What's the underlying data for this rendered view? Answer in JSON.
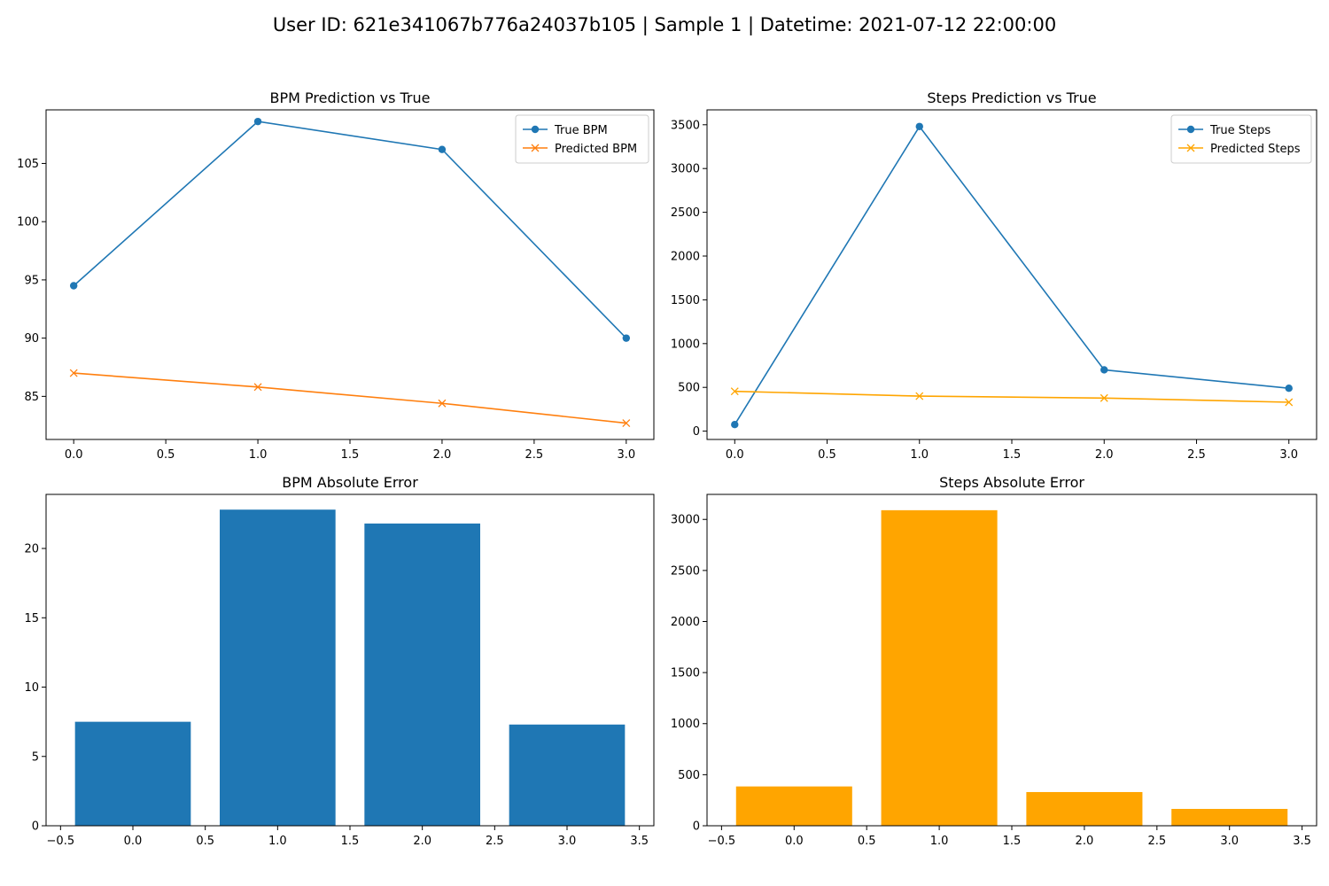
{
  "figure": {
    "suptitle": "User ID: 621e341067b776a24037b105 | Sample 1 | Datetime: 2021-07-12 22:00:00"
  },
  "chart_data": [
    {
      "id": "bpm-line",
      "type": "line",
      "title": "BPM Prediction vs True",
      "xlabel": "",
      "ylabel": "",
      "x": [
        0,
        1,
        2,
        3
      ],
      "xlim": [
        -0.15,
        3.15
      ],
      "ylim": [
        81.3,
        109.6
      ],
      "xticks": [
        "0.0",
        "0.5",
        "1.0",
        "1.5",
        "2.0",
        "2.5",
        "3.0"
      ],
      "yticks": [
        "85",
        "90",
        "95",
        "100",
        "105"
      ],
      "grid": false,
      "legend": "top-right",
      "series": [
        {
          "name": "True BPM",
          "values": [
            94.5,
            108.6,
            106.2,
            90.0
          ],
          "color": "#1f77b4",
          "marker": "circle"
        },
        {
          "name": "Predicted BPM",
          "values": [
            87.0,
            85.8,
            84.4,
            82.7
          ],
          "color": "#ff7f0e",
          "marker": "x"
        }
      ]
    },
    {
      "id": "steps-line",
      "type": "line",
      "title": "Steps Prediction vs True",
      "xlabel": "",
      "ylabel": "",
      "x": [
        0,
        1,
        2,
        3
      ],
      "xlim": [
        -0.15,
        3.15
      ],
      "ylim": [
        -95,
        3670
      ],
      "xticks": [
        "0.0",
        "0.5",
        "1.0",
        "1.5",
        "2.0",
        "2.5",
        "3.0"
      ],
      "yticks": [
        "0",
        "500",
        "1000",
        "1500",
        "2000",
        "2500",
        "3000",
        "3500"
      ],
      "grid": false,
      "legend": "top-right",
      "series": [
        {
          "name": "True Steps",
          "values": [
            75,
            3480,
            700,
            490
          ],
          "color": "#1f77b4",
          "marker": "circle"
        },
        {
          "name": "Predicted Steps",
          "values": [
            455,
            400,
            378,
            330
          ],
          "color": "#ffa500",
          "marker": "x"
        }
      ]
    },
    {
      "id": "bpm-bar",
      "type": "bar",
      "title": "BPM Absolute Error",
      "xlabel": "",
      "ylabel": "",
      "x": [
        0,
        1,
        2,
        3
      ],
      "values": [
        7.5,
        22.8,
        21.8,
        7.3
      ],
      "bar_width": 0.8,
      "color": "#1f77b4",
      "xlim": [
        -0.6,
        3.6
      ],
      "ylim": [
        0,
        23.9
      ],
      "xticks": [
        "−0.5",
        "0.0",
        "0.5",
        "1.0",
        "1.5",
        "2.0",
        "2.5",
        "3.0",
        "3.5"
      ],
      "yticks": [
        "0",
        "5",
        "10",
        "15",
        "20"
      ],
      "grid": false
    },
    {
      "id": "steps-bar",
      "type": "bar",
      "title": "Steps Absolute Error",
      "xlabel": "",
      "ylabel": "",
      "x": [
        0,
        1,
        2,
        3
      ],
      "values": [
        385,
        3090,
        330,
        165
      ],
      "bar_width": 0.8,
      "color": "#ffa500",
      "xlim": [
        -0.6,
        3.6
      ],
      "ylim": [
        0,
        3245
      ],
      "xticks": [
        "−0.5",
        "0.0",
        "0.5",
        "1.0",
        "1.5",
        "2.0",
        "2.5",
        "3.0",
        "3.5"
      ],
      "yticks": [
        "0",
        "500",
        "1000",
        "1500",
        "2000",
        "2500",
        "3000"
      ],
      "grid": false
    }
  ]
}
